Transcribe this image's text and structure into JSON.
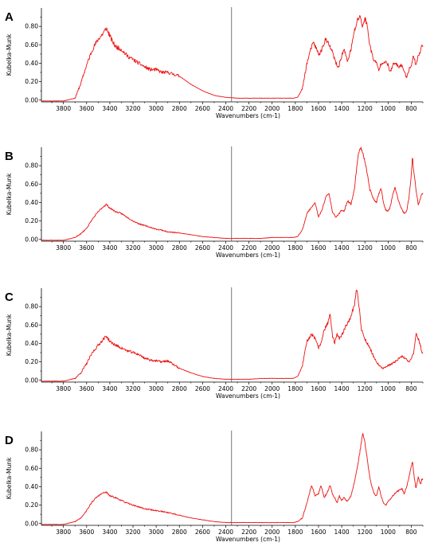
{
  "colors": {
    "spectrum": "#ee1111",
    "axis": "#000000",
    "marker": "#555555"
  },
  "chart_data": [
    {
      "type": "line",
      "panel_label": "A",
      "xlabel": "Wavenumbers (cm-1)",
      "ylabel": "Kubelka-Munk",
      "x_reversed": true,
      "xlim": [
        3990,
        700
      ],
      "ylim": [
        -0.02,
        1.0
      ],
      "x_ticks": [
        3800,
        3600,
        3400,
        3200,
        3000,
        2800,
        2600,
        2400,
        2200,
        2000,
        1800,
        1600,
        1400,
        1200,
        1000,
        800
      ],
      "y_ticks": [
        0.0,
        0.2,
        0.4,
        0.6,
        0.8
      ],
      "y_tick_labels": [
        "0.00",
        "0.20",
        "0.40",
        "0.60",
        "0.80"
      ],
      "marker_x": 2350,
      "noise": 0.025,
      "noise_seed": 11,
      "series": [
        {
          "x": [
            3990,
            3800,
            3700,
            3650,
            3600,
            3550,
            3500,
            3460,
            3430,
            3400,
            3380,
            3350,
            3300,
            3250,
            3200,
            3150,
            3100,
            3050,
            3000,
            2950,
            2900,
            2800,
            2700,
            2600,
            2500,
            2400,
            2300,
            2200,
            2100,
            2000,
            1900,
            1820,
            1780,
            1740,
            1700,
            1660,
            1640,
            1600,
            1580,
            1540,
            1510,
            1480,
            1450,
            1430,
            1400,
            1380,
            1350,
            1320,
            1290,
            1260,
            1240,
            1220,
            1200,
            1180,
            1160,
            1130,
            1100,
            1080,
            1060,
            1030,
            1000,
            980,
            960,
            940,
            910,
            880,
            860,
            840,
            820,
            800,
            780,
            760,
            740,
            720,
            710
          ],
          "y": [
            -0.01,
            -0.01,
            0.02,
            0.18,
            0.38,
            0.55,
            0.66,
            0.72,
            0.78,
            0.7,
            0.64,
            0.58,
            0.55,
            0.48,
            0.44,
            0.4,
            0.36,
            0.33,
            0.33,
            0.3,
            0.3,
            0.26,
            0.17,
            0.1,
            0.05,
            0.03,
            0.02,
            0.02,
            0.02,
            0.02,
            0.02,
            0.02,
            0.03,
            0.12,
            0.4,
            0.58,
            0.62,
            0.5,
            0.52,
            0.66,
            0.6,
            0.52,
            0.4,
            0.35,
            0.48,
            0.55,
            0.42,
            0.55,
            0.75,
            0.88,
            0.92,
            0.78,
            0.9,
            0.8,
            0.62,
            0.45,
            0.4,
            0.32,
            0.4,
            0.42,
            0.38,
            0.3,
            0.38,
            0.4,
            0.36,
            0.38,
            0.3,
            0.25,
            0.33,
            0.38,
            0.48,
            0.38,
            0.48,
            0.52,
            0.6
          ]
        }
      ]
    },
    {
      "type": "line",
      "panel_label": "B",
      "xlabel": "Wavenumbers (cm-1)",
      "ylabel": "Kubelka-Munk",
      "x_reversed": true,
      "xlim": [
        3990,
        700
      ],
      "ylim": [
        -0.02,
        1.0
      ],
      "x_ticks": [
        3800,
        3600,
        3400,
        3200,
        3000,
        2800,
        2600,
        2400,
        2200,
        2000,
        1800,
        1600,
        1400,
        1200,
        1000,
        800
      ],
      "y_ticks": [
        0.0,
        0.2,
        0.4,
        0.6,
        0.8
      ],
      "y_tick_labels": [
        "0.00",
        "0.20",
        "0.40",
        "0.60",
        "0.80"
      ],
      "marker_x": 2350,
      "noise": 0.012,
      "noise_seed": 23,
      "series": [
        {
          "x": [
            3990,
            3800,
            3700,
            3650,
            3600,
            3550,
            3500,
            3460,
            3430,
            3400,
            3350,
            3300,
            3250,
            3200,
            3150,
            3100,
            3050,
            3000,
            2950,
            2900,
            2800,
            2700,
            2600,
            2500,
            2400,
            2300,
            2200,
            2100,
            2000,
            1900,
            1820,
            1780,
            1740,
            1700,
            1660,
            1630,
            1600,
            1570,
            1540,
            1510,
            1480,
            1450,
            1420,
            1400,
            1380,
            1350,
            1320,
            1290,
            1260,
            1240,
            1220,
            1200,
            1180,
            1160,
            1130,
            1100,
            1080,
            1060,
            1040,
            1020,
            1000,
            980,
            960,
            940,
            910,
            880,
            860,
            840,
            820,
            800,
            790,
            780,
            760,
            740,
            720,
            710
          ],
          "y": [
            -0.01,
            -0.01,
            0.02,
            0.06,
            0.12,
            0.22,
            0.3,
            0.35,
            0.38,
            0.34,
            0.3,
            0.28,
            0.24,
            0.2,
            0.17,
            0.15,
            0.13,
            0.11,
            0.1,
            0.08,
            0.07,
            0.05,
            0.03,
            0.02,
            0.01,
            0.01,
            0.01,
            0.01,
            0.02,
            0.02,
            0.02,
            0.03,
            0.1,
            0.28,
            0.35,
            0.4,
            0.24,
            0.32,
            0.45,
            0.5,
            0.3,
            0.24,
            0.28,
            0.32,
            0.3,
            0.42,
            0.38,
            0.55,
            0.9,
            1.0,
            0.95,
            0.85,
            0.72,
            0.55,
            0.45,
            0.4,
            0.5,
            0.55,
            0.4,
            0.32,
            0.3,
            0.36,
            0.48,
            0.56,
            0.42,
            0.32,
            0.28,
            0.3,
            0.45,
            0.7,
            0.9,
            0.75,
            0.55,
            0.38,
            0.44,
            0.5
          ]
        }
      ]
    },
    {
      "type": "line",
      "panel_label": "C",
      "xlabel": "Wavenumbers (cm-1)",
      "ylabel": "Kubelka-Munk",
      "x_reversed": true,
      "xlim": [
        3990,
        700
      ],
      "ylim": [
        -0.02,
        1.0
      ],
      "x_ticks": [
        3800,
        3600,
        3400,
        3200,
        3000,
        2800,
        2600,
        2400,
        2200,
        2000,
        1800,
        1600,
        1400,
        1200,
        1000,
        800
      ],
      "y_ticks": [
        0.0,
        0.2,
        0.4,
        0.6,
        0.8
      ],
      "y_tick_labels": [
        "0.00",
        "0.20",
        "0.40",
        "0.60",
        "0.80"
      ],
      "marker_x": 2350,
      "noise": 0.02,
      "noise_seed": 37,
      "series": [
        {
          "x": [
            3990,
            3800,
            3700,
            3650,
            3600,
            3550,
            3500,
            3460,
            3430,
            3400,
            3350,
            3300,
            3250,
            3200,
            3150,
            3100,
            3050,
            3000,
            2950,
            2900,
            2850,
            2800,
            2700,
            2600,
            2500,
            2400,
            2300,
            2200,
            2100,
            2000,
            1900,
            1820,
            1780,
            1740,
            1700,
            1660,
            1630,
            1600,
            1580,
            1550,
            1520,
            1500,
            1480,
            1460,
            1440,
            1420,
            1400,
            1380,
            1350,
            1320,
            1290,
            1270,
            1250,
            1230,
            1200,
            1170,
            1140,
            1110,
            1080,
            1050,
            1020,
            1000,
            980,
            960,
            940,
            920,
            900,
            880,
            860,
            840,
            820,
            800,
            780,
            760,
            740,
            720,
            710
          ],
          "y": [
            -0.01,
            -0.01,
            0.02,
            0.08,
            0.18,
            0.3,
            0.38,
            0.44,
            0.48,
            0.42,
            0.38,
            0.35,
            0.32,
            0.3,
            0.28,
            0.24,
            0.22,
            0.21,
            0.2,
            0.21,
            0.17,
            0.13,
            0.08,
            0.04,
            0.02,
            0.01,
            0.01,
            0.01,
            0.02,
            0.02,
            0.02,
            0.02,
            0.04,
            0.15,
            0.42,
            0.5,
            0.45,
            0.35,
            0.4,
            0.55,
            0.62,
            0.72,
            0.48,
            0.4,
            0.5,
            0.45,
            0.48,
            0.55,
            0.62,
            0.7,
            0.82,
            1.0,
            0.8,
            0.55,
            0.45,
            0.38,
            0.3,
            0.22,
            0.16,
            0.13,
            0.14,
            0.16,
            0.17,
            0.18,
            0.2,
            0.22,
            0.25,
            0.26,
            0.24,
            0.22,
            0.2,
            0.24,
            0.3,
            0.5,
            0.45,
            0.38,
            0.3
          ]
        }
      ]
    },
    {
      "type": "line",
      "panel_label": "D",
      "xlabel": "Wavenumbers (cm-1)",
      "ylabel": "Kubelka-Munk",
      "x_reversed": true,
      "xlim": [
        3990,
        700
      ],
      "ylim": [
        -0.02,
        1.0
      ],
      "x_ticks": [
        3800,
        3600,
        3400,
        3200,
        3000,
        2800,
        2600,
        2400,
        2200,
        2000,
        1800,
        1600,
        1400,
        1200,
        1000,
        800
      ],
      "y_ticks": [
        0.0,
        0.2,
        0.4,
        0.6,
        0.8
      ],
      "y_tick_labels": [
        "0.00",
        "0.20",
        "0.40",
        "0.60",
        "0.80"
      ],
      "marker_x": 2350,
      "noise": 0.012,
      "noise_seed": 53,
      "series": [
        {
          "x": [
            3990,
            3800,
            3700,
            3650,
            3600,
            3550,
            3500,
            3460,
            3430,
            3400,
            3350,
            3300,
            3250,
            3200,
            3150,
            3100,
            3050,
            3000,
            2950,
            2900,
            2800,
            2700,
            2600,
            2500,
            2400,
            2300,
            2200,
            2100,
            2000,
            1900,
            1820,
            1780,
            1740,
            1700,
            1660,
            1630,
            1600,
            1580,
            1550,
            1520,
            1500,
            1480,
            1460,
            1440,
            1420,
            1400,
            1380,
            1350,
            1320,
            1290,
            1260,
            1240,
            1220,
            1200,
            1180,
            1160,
            1140,
            1120,
            1100,
            1080,
            1060,
            1040,
            1020,
            1000,
            980,
            960,
            940,
            920,
            900,
            880,
            860,
            840,
            820,
            800,
            790,
            780,
            760,
            740,
            720,
            710
          ],
          "y": [
            -0.01,
            -0.01,
            0.02,
            0.06,
            0.14,
            0.24,
            0.3,
            0.33,
            0.34,
            0.3,
            0.28,
            0.25,
            0.22,
            0.2,
            0.18,
            0.16,
            0.15,
            0.14,
            0.13,
            0.12,
            0.09,
            0.06,
            0.04,
            0.02,
            0.01,
            0.01,
            0.01,
            0.01,
            0.01,
            0.01,
            0.01,
            0.02,
            0.06,
            0.22,
            0.42,
            0.3,
            0.32,
            0.42,
            0.28,
            0.35,
            0.42,
            0.32,
            0.28,
            0.22,
            0.3,
            0.25,
            0.28,
            0.24,
            0.3,
            0.45,
            0.65,
            0.8,
            0.98,
            0.88,
            0.7,
            0.52,
            0.4,
            0.32,
            0.3,
            0.4,
            0.3,
            0.22,
            0.2,
            0.24,
            0.26,
            0.3,
            0.33,
            0.35,
            0.36,
            0.38,
            0.32,
            0.4,
            0.5,
            0.62,
            0.68,
            0.55,
            0.38,
            0.5,
            0.42,
            0.48
          ]
        }
      ]
    }
  ]
}
